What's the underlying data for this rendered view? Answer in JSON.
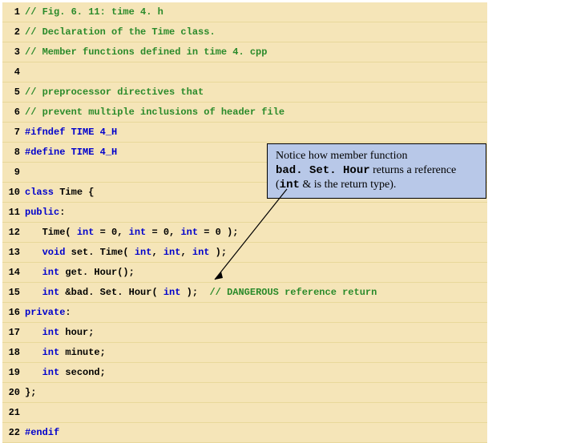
{
  "callout": {
    "line1_a": "Notice how member function",
    "line2_mono": "bad. Set. Hour",
    "line2_b": " returns a reference",
    "line3_a": "(",
    "line3_mono": "int",
    "line3_b": "  & is the return type).",
    "bg": "#b8c8e8",
    "border": "#000000"
  },
  "code_bg": "#f5e5b8",
  "comment_color": "#2a8a2a",
  "keyword_color": "#0000cc",
  "lines": [
    {
      "n": "1",
      "segs": [
        {
          "c": "comment",
          "t": "// Fig. 6. 11: time 4. h"
        }
      ]
    },
    {
      "n": "2",
      "segs": [
        {
          "c": "comment",
          "t": "// Declaration of the Time class."
        }
      ]
    },
    {
      "n": "3",
      "segs": [
        {
          "c": "comment",
          "t": "// Member functions defined in time 4. cpp"
        }
      ]
    },
    {
      "n": "4",
      "segs": []
    },
    {
      "n": "5",
      "segs": [
        {
          "c": "comment",
          "t": "// preprocessor directives that"
        }
      ]
    },
    {
      "n": "6",
      "segs": [
        {
          "c": "comment",
          "t": "// prevent multiple inclusions of header file"
        }
      ]
    },
    {
      "n": "7",
      "segs": [
        {
          "c": "keyword",
          "t": "#ifndef TIME 4_H"
        }
      ]
    },
    {
      "n": "8",
      "segs": [
        {
          "c": "keyword",
          "t": "#define TIME 4_H"
        }
      ]
    },
    {
      "n": "9",
      "segs": []
    },
    {
      "n": "10",
      "segs": [
        {
          "c": "keyword",
          "t": "class "
        },
        {
          "c": "normal",
          "t": "Time {"
        }
      ]
    },
    {
      "n": "11",
      "segs": [
        {
          "c": "keyword",
          "t": "public"
        },
        {
          "c": "normal",
          "t": ":"
        }
      ]
    },
    {
      "n": "12",
      "segs": [
        {
          "c": "normal",
          "t": "   Time( "
        },
        {
          "c": "keyword",
          "t": "int"
        },
        {
          "c": "normal",
          "t": " = 0, "
        },
        {
          "c": "keyword",
          "t": "int"
        },
        {
          "c": "normal",
          "t": " = 0, "
        },
        {
          "c": "keyword",
          "t": "int"
        },
        {
          "c": "normal",
          "t": " = 0 );"
        }
      ]
    },
    {
      "n": "13",
      "segs": [
        {
          "c": "normal",
          "t": "   "
        },
        {
          "c": "keyword",
          "t": "void"
        },
        {
          "c": "normal",
          "t": " set. Time( "
        },
        {
          "c": "keyword",
          "t": "int"
        },
        {
          "c": "normal",
          "t": ", "
        },
        {
          "c": "keyword",
          "t": "int"
        },
        {
          "c": "normal",
          "t": ", "
        },
        {
          "c": "keyword",
          "t": "int"
        },
        {
          "c": "normal",
          "t": " );"
        }
      ]
    },
    {
      "n": "14",
      "segs": [
        {
          "c": "normal",
          "t": "   "
        },
        {
          "c": "keyword",
          "t": "int"
        },
        {
          "c": "normal",
          "t": " get. Hour();"
        }
      ]
    },
    {
      "n": "15",
      "segs": [
        {
          "c": "normal",
          "t": "   "
        },
        {
          "c": "keyword",
          "t": "int"
        },
        {
          "c": "normal",
          "t": " &bad. Set. Hour( "
        },
        {
          "c": "keyword",
          "t": "int"
        },
        {
          "c": "normal",
          "t": " );  "
        },
        {
          "c": "comment",
          "t": "// DANGEROUS reference return"
        }
      ]
    },
    {
      "n": "16",
      "segs": [
        {
          "c": "keyword",
          "t": "private"
        },
        {
          "c": "normal",
          "t": ":"
        }
      ]
    },
    {
      "n": "17",
      "segs": [
        {
          "c": "normal",
          "t": "   "
        },
        {
          "c": "keyword",
          "t": "int"
        },
        {
          "c": "normal",
          "t": " hour;"
        }
      ]
    },
    {
      "n": "18",
      "segs": [
        {
          "c": "normal",
          "t": "   "
        },
        {
          "c": "keyword",
          "t": "int"
        },
        {
          "c": "normal",
          "t": " minute;"
        }
      ]
    },
    {
      "n": "19",
      "segs": [
        {
          "c": "normal",
          "t": "   "
        },
        {
          "c": "keyword",
          "t": "int"
        },
        {
          "c": "normal",
          "t": " second;"
        }
      ]
    },
    {
      "n": "20",
      "segs": [
        {
          "c": "normal",
          "t": "};"
        }
      ]
    },
    {
      "n": "21",
      "segs": []
    },
    {
      "n": "22",
      "segs": [
        {
          "c": "keyword",
          "t": "#endif"
        }
      ]
    }
  ]
}
